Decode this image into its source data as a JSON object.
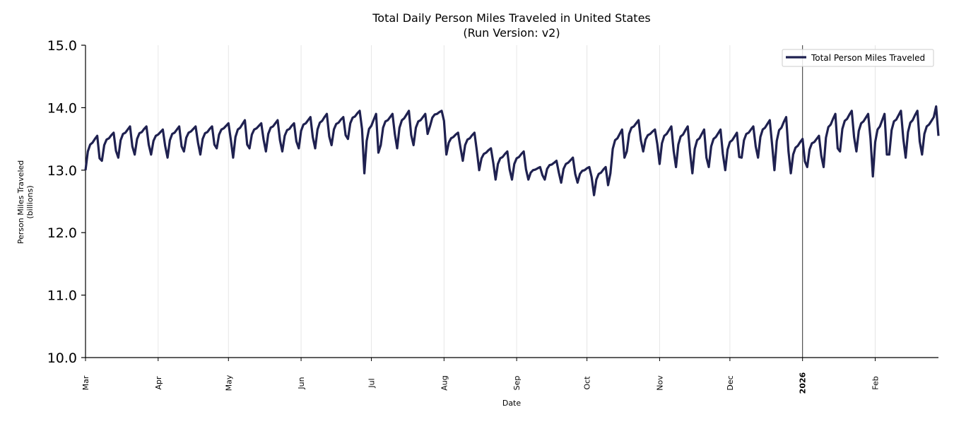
{
  "chart_data": {
    "type": "line",
    "title": "Total Daily Person Miles Traveled in United States",
    "subtitle": "(Run Version: v2)",
    "xlabel": "Date",
    "ylabel": [
      "Person Miles Traveled",
      "(billions)"
    ],
    "ylim": [
      10.0,
      15.0
    ],
    "yticks": [
      "10.0",
      "11.0",
      "12.0",
      "13.0",
      "14.0",
      "15.0"
    ],
    "start_date": "2025-03-01",
    "x_unit": "day",
    "xticks": [
      {
        "label": "Mar",
        "day": 0,
        "bold": false
      },
      {
        "label": "Apr",
        "day": 31,
        "bold": false
      },
      {
        "label": "May",
        "day": 61,
        "bold": false
      },
      {
        "label": "Jun",
        "day": 92,
        "bold": false
      },
      {
        "label": "Jul",
        "day": 122,
        "bold": false
      },
      {
        "label": "Aug",
        "day": 153,
        "bold": false
      },
      {
        "label": "Sep",
        "day": 184,
        "bold": false
      },
      {
        "label": "Oct",
        "day": 214,
        "bold": false
      },
      {
        "label": "Nov",
        "day": 245,
        "bold": false
      },
      {
        "label": "Dec",
        "day": 275,
        "bold": false
      },
      {
        "label": "2026",
        "day": 306,
        "bold": true
      },
      {
        "label": "Feb",
        "day": 337,
        "bold": false
      }
    ],
    "xlim_days": [
      0,
      364
    ],
    "vline_day": 306,
    "grid": "vertical",
    "legend": {
      "placement": "top-right",
      "entries": [
        "Total Person Miles Traveled"
      ]
    },
    "series": [
      {
        "name": "Total Person Miles Traveled",
        "color": "#1f2150",
        "values": [
          13.0,
          13.3,
          13.41,
          13.44,
          13.5,
          13.55,
          13.19,
          13.15,
          13.4,
          13.49,
          13.51,
          13.56,
          13.6,
          13.31,
          13.2,
          13.48,
          13.58,
          13.6,
          13.65,
          13.7,
          13.38,
          13.25,
          13.5,
          13.59,
          13.61,
          13.66,
          13.7,
          13.41,
          13.25,
          13.47,
          13.55,
          13.57,
          13.61,
          13.65,
          13.39,
          13.2,
          13.48,
          13.58,
          13.6,
          13.65,
          13.7,
          13.38,
          13.3,
          13.52,
          13.6,
          13.62,
          13.66,
          13.7,
          13.44,
          13.25,
          13.5,
          13.59,
          13.61,
          13.66,
          13.7,
          13.41,
          13.35,
          13.57,
          13.65,
          13.67,
          13.71,
          13.75,
          13.49,
          13.2,
          13.53,
          13.65,
          13.68,
          13.74,
          13.8,
          13.41,
          13.35,
          13.57,
          13.65,
          13.67,
          13.71,
          13.75,
          13.49,
          13.3,
          13.58,
          13.68,
          13.7,
          13.75,
          13.8,
          13.48,
          13.3,
          13.55,
          13.64,
          13.66,
          13.71,
          13.75,
          13.46,
          13.35,
          13.63,
          13.73,
          13.75,
          13.8,
          13.85,
          13.53,
          13.35,
          13.65,
          13.76,
          13.79,
          13.85,
          13.9,
          13.54,
          13.4,
          13.65,
          13.74,
          13.76,
          13.81,
          13.85,
          13.56,
          13.5,
          13.75,
          13.84,
          13.86,
          13.91,
          13.95,
          13.66,
          12.95,
          13.47,
          13.66,
          13.71,
          13.81,
          13.9,
          13.28,
          13.4,
          13.68,
          13.78,
          13.8,
          13.85,
          13.9,
          13.58,
          13.35,
          13.68,
          13.8,
          13.83,
          13.89,
          13.95,
          13.56,
          13.4,
          13.68,
          13.78,
          13.8,
          13.85,
          13.9,
          13.58,
          13.7,
          13.84,
          13.89,
          13.9,
          13.93,
          13.95,
          13.79,
          13.25,
          13.44,
          13.51,
          13.53,
          13.57,
          13.6,
          13.37,
          13.15,
          13.4,
          13.49,
          13.51,
          13.56,
          13.6,
          13.31,
          13.0,
          13.19,
          13.26,
          13.28,
          13.32,
          13.35,
          13.12,
          12.85,
          13.1,
          13.19,
          13.21,
          13.26,
          13.3,
          13.01,
          12.85,
          13.1,
          13.19,
          13.21,
          13.26,
          13.3,
          13.01,
          12.85,
          12.96,
          13.0,
          13.01,
          13.03,
          13.05,
          12.92,
          12.85,
          13.02,
          13.08,
          13.09,
          13.12,
          13.15,
          12.96,
          12.8,
          13.02,
          13.1,
          13.12,
          13.16,
          13.2,
          12.94,
          12.8,
          12.94,
          12.99,
          13.0,
          13.03,
          13.05,
          12.89,
          12.6,
          12.85,
          12.94,
          12.96,
          13.01,
          13.05,
          12.76,
          12.95,
          13.34,
          13.48,
          13.51,
          13.58,
          13.65,
          13.2,
          13.3,
          13.58,
          13.68,
          13.7,
          13.75,
          13.8,
          13.48,
          13.3,
          13.49,
          13.56,
          13.58,
          13.62,
          13.65,
          13.42,
          13.1,
          13.43,
          13.55,
          13.58,
          13.64,
          13.7,
          13.31,
          13.05,
          13.41,
          13.54,
          13.57,
          13.64,
          13.7,
          13.28,
          12.95,
          13.34,
          13.48,
          13.51,
          13.58,
          13.65,
          13.2,
          13.05,
          13.38,
          13.5,
          13.53,
          13.59,
          13.65,
          13.26,
          13.0,
          13.33,
          13.45,
          13.48,
          13.54,
          13.6,
          13.21,
          13.2,
          13.48,
          13.58,
          13.6,
          13.65,
          13.7,
          13.38,
          13.2,
          13.53,
          13.65,
          13.68,
          13.74,
          13.8,
          13.41,
          13.0,
          13.47,
          13.64,
          13.68,
          13.77,
          13.85,
          13.3,
          12.95,
          13.25,
          13.36,
          13.39,
          13.45,
          13.5,
          13.14,
          13.05,
          13.33,
          13.43,
          13.45,
          13.5,
          13.55,
          13.23,
          13.05,
          13.52,
          13.69,
          13.73,
          13.82,
          13.9,
          13.35,
          13.3,
          13.66,
          13.79,
          13.82,
          13.89,
          13.95,
          13.53,
          13.3,
          13.63,
          13.75,
          13.78,
          13.84,
          13.9,
          13.51,
          12.9,
          13.45,
          13.65,
          13.7,
          13.8,
          13.9,
          13.25,
          13.25,
          13.64,
          13.78,
          13.81,
          13.88,
          13.95,
          13.5,
          13.2,
          13.61,
          13.76,
          13.8,
          13.88,
          13.95,
          13.46,
          13.25,
          13.58,
          13.7,
          13.73,
          13.79,
          13.85,
          14.02,
          13.55
        ]
      }
    ]
  }
}
